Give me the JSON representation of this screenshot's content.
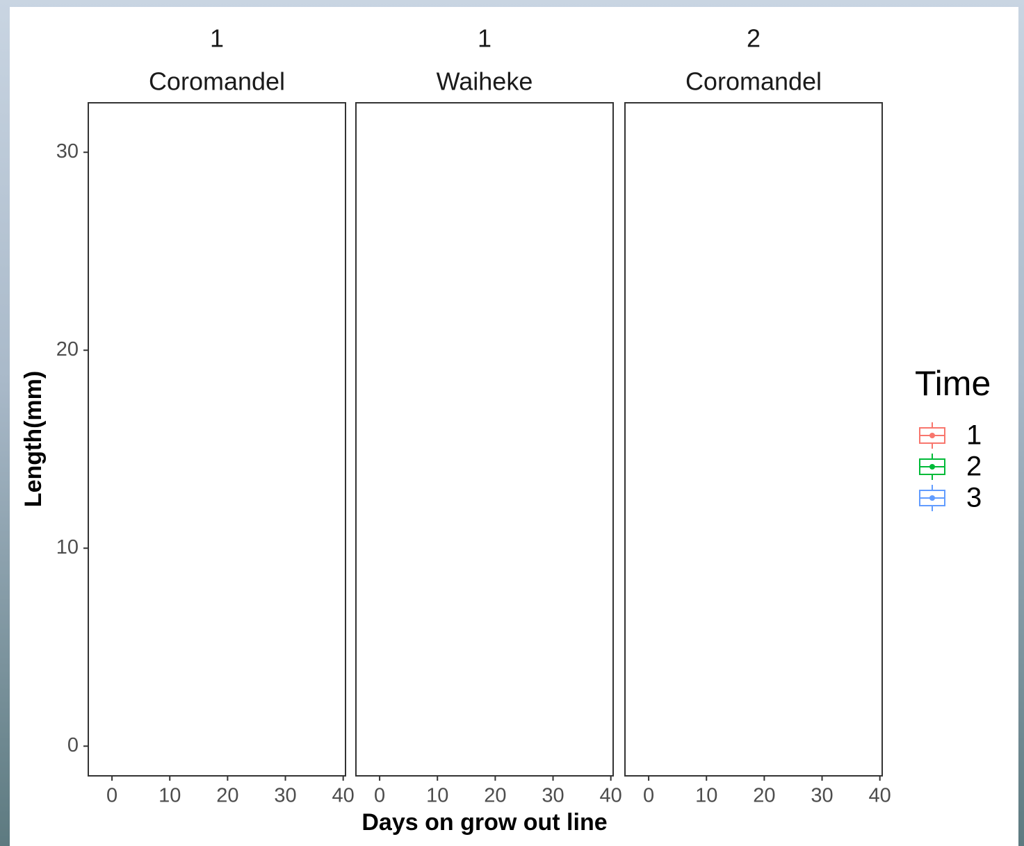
{
  "chart_data": {
    "type": "boxplot",
    "facets": [
      {
        "labels": [
          "1",
          "Coromandel"
        ]
      },
      {
        "labels": [
          "1",
          "Waiheke"
        ]
      },
      {
        "labels": [
          "2",
          "Coromandel"
        ]
      }
    ],
    "x_label": "Days on grow out line",
    "y_label": "Length(mm)",
    "xlim": [
      -4.1,
      40.4
    ],
    "xticks": [
      0,
      10,
      20,
      30,
      40
    ],
    "ylim": [
      -1.5,
      32.5
    ],
    "yticks": [
      0,
      10,
      20,
      30
    ],
    "legend_title": "Time",
    "legend_position": "right",
    "series": [
      {
        "name": "1",
        "color": "#F8766D"
      },
      {
        "name": "2",
        "color": "#00BA38"
      },
      {
        "name": "3",
        "color": "#619CFF"
      }
    ]
  }
}
